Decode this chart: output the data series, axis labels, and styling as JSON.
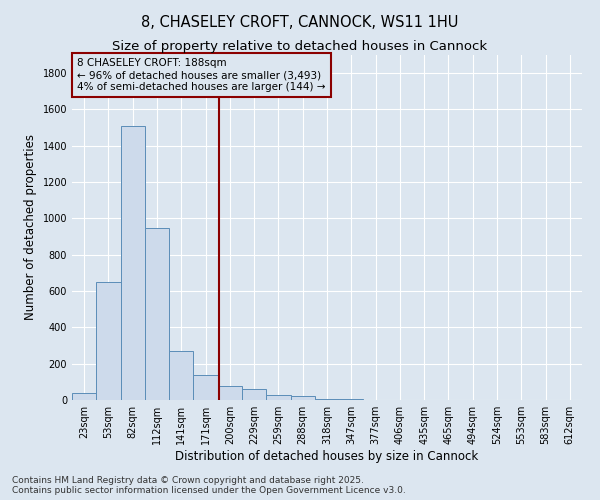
{
  "title_line1": "8, CHASELEY CROFT, CANNOCK, WS11 1HU",
  "title_line2": "Size of property relative to detached houses in Cannock",
  "xlabel": "Distribution of detached houses by size in Cannock",
  "ylabel": "Number of detached properties",
  "bar_color": "#cddaeb",
  "bar_edge_color": "#5b8db8",
  "bg_color": "#dce6f0",
  "grid_color": "#ffffff",
  "bins": [
    "23sqm",
    "53sqm",
    "82sqm",
    "112sqm",
    "141sqm",
    "171sqm",
    "200sqm",
    "229sqm",
    "259sqm",
    "288sqm",
    "318sqm",
    "347sqm",
    "377sqm",
    "406sqm",
    "435sqm",
    "465sqm",
    "494sqm",
    "524sqm",
    "553sqm",
    "583sqm",
    "612sqm"
  ],
  "values": [
    40,
    650,
    1510,
    950,
    270,
    140,
    75,
    60,
    25,
    20,
    5,
    5,
    0,
    0,
    0,
    0,
    0,
    0,
    0,
    0,
    0
  ],
  "ylim": [
    0,
    1900
  ],
  "yticks": [
    0,
    200,
    400,
    600,
    800,
    1000,
    1200,
    1400,
    1600,
    1800
  ],
  "property_label": "8 CHASELEY CROFT: 188sqm",
  "pct_smaller": "96% of detached houses are smaller (3,493)",
  "pct_larger": "4% of semi-detached houses are larger (144)",
  "vline_bin_index": 5.55,
  "footer_line1": "Contains HM Land Registry data © Crown copyright and database right 2025.",
  "footer_line2": "Contains public sector information licensed under the Open Government Licence v3.0.",
  "title_fontsize": 10.5,
  "subtitle_fontsize": 9.5,
  "axis_label_fontsize": 8.5,
  "tick_fontsize": 7,
  "annotation_fontsize": 7.5,
  "footer_fontsize": 6.5
}
